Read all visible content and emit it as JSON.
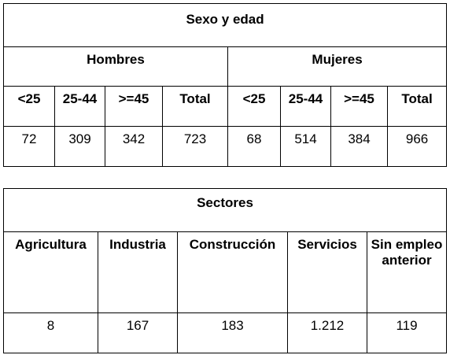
{
  "table1": {
    "title": "Sexo y edad",
    "groups": [
      "Hombres",
      "Mujeres"
    ],
    "age_headers": [
      "<25",
      "25-44",
      ">=45",
      "Total",
      "<25",
      "25-44",
      ">=45",
      "Total"
    ],
    "values": [
      "72",
      "309",
      "342",
      "723",
      "68",
      "514",
      "384",
      "966"
    ]
  },
  "table2": {
    "title": "Sectores",
    "headers": [
      "Agricultura",
      "Industria",
      "Construcción",
      "Servicios",
      "Sin empleo anterior"
    ],
    "values": [
      "8",
      "167",
      "183",
      "1.212",
      "119"
    ]
  }
}
